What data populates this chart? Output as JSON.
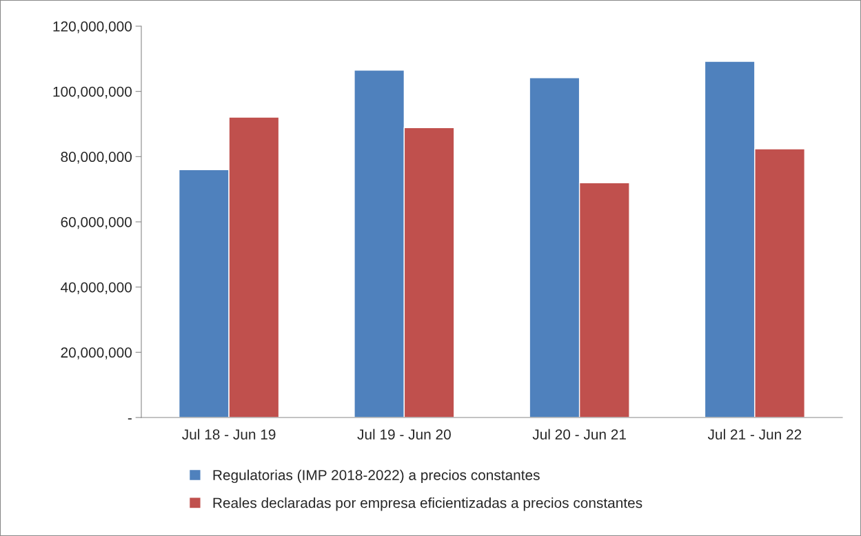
{
  "chart_data": {
    "type": "bar",
    "categories": [
      "Jul 18 - Jun 19",
      "Jul 19 - Jun 20",
      "Jul 20 - Jun 21",
      "Jul 21 - Jun 22"
    ],
    "series": [
      {
        "name": "Regulatorias (IMP 2018-2022) a precios constantes",
        "color": "#4f81bd",
        "values": [
          76000000,
          106500000,
          104200000,
          109200000
        ]
      },
      {
        "name": "Reales declaradas por empresa eficientizadas a precios constantes",
        "color": "#c0504d",
        "values": [
          92100000,
          88900000,
          72000000,
          82400000
        ]
      }
    ],
    "ylim": [
      0,
      120000000
    ],
    "yticks": [
      {
        "value": 0,
        "label": "-"
      },
      {
        "value": 20000000,
        "label": "20,000,000"
      },
      {
        "value": 40000000,
        "label": "40,000,000"
      },
      {
        "value": 60000000,
        "label": "60,000,000"
      },
      {
        "value": 80000000,
        "label": "80,000,000"
      },
      {
        "value": 100000000,
        "label": "100,000,000"
      },
      {
        "value": 120000000,
        "label": "120,000,000"
      }
    ],
    "grid": false,
    "legend": "bottom"
  }
}
